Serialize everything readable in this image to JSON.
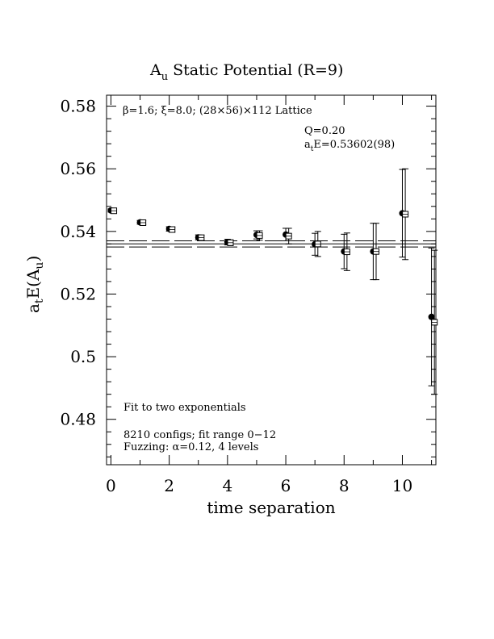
{
  "chart_data": {
    "type": "scatter",
    "title_main": "A",
    "title_sub": "u",
    "title_rest": " Static Potential (R=9)",
    "xlabel": "time separation",
    "ylabel_a": "a",
    "ylabel_t": "t",
    "ylabel_E": "E(A",
    "ylabel_u": "u",
    "ylabel_close": ")",
    "xlim": [
      -0.15,
      11.15
    ],
    "ylim": [
      0.4655,
      0.5835
    ],
    "x_ticks": [
      0,
      2,
      4,
      6,
      8,
      10
    ],
    "x_tick_labels": [
      "0",
      "2",
      "4",
      "6",
      "8",
      "10"
    ],
    "y_ticks": [
      0.48,
      0.5,
      0.52,
      0.54,
      0.56,
      0.58
    ],
    "y_tick_labels": [
      "0.48",
      "0.5",
      "0.52",
      "0.54",
      "0.56",
      "0.58"
    ],
    "annotations": {
      "lattice": "β=1.6; ξ=8.0; (28×56)×112 Lattice",
      "q_value": "Q=0.20",
      "energy_a": "a",
      "energy_t": "t",
      "energy_rest": "E=0.53602(98)",
      "fit_desc": "Fit to two exponentials",
      "configs": "8210 configs; fit range 0−12",
      "fuzzing": "Fuzzing: α=0.12, 4 levels"
    },
    "fit": {
      "value": 0.53602,
      "error": 0.00098
    },
    "series": [
      {
        "marker": "filled-circle",
        "points": [
          {
            "x": 0,
            "y": 0.5467,
            "err": 0.0005
          },
          {
            "x": 1,
            "y": 0.5429,
            "err": 0.0006
          },
          {
            "x": 2,
            "y": 0.5408,
            "err": 0.0007
          },
          {
            "x": 3,
            "y": 0.5381,
            "err": 0.0008
          },
          {
            "x": 4,
            "y": 0.5366,
            "err": 0.0009
          },
          {
            "x": 5,
            "y": 0.5389,
            "err": 0.0013
          },
          {
            "x": 6,
            "y": 0.539,
            "err": 0.002
          },
          {
            "x": 7,
            "y": 0.5359,
            "err": 0.0035
          },
          {
            "x": 8,
            "y": 0.5336,
            "err": 0.0055
          },
          {
            "x": 9,
            "y": 0.5336,
            "err": 0.009
          },
          {
            "x": 10,
            "y": 0.5458,
            "err": 0.014
          },
          {
            "x": 11,
            "y": 0.5127,
            "err": 0.022
          }
        ]
      },
      {
        "marker": "open-square",
        "points": [
          {
            "x": 0.1,
            "y": 0.5466,
            "err": 0.0005
          },
          {
            "x": 1.1,
            "y": 0.5428,
            "err": 0.0006
          },
          {
            "x": 2.1,
            "y": 0.5406,
            "err": 0.0007
          },
          {
            "x": 3.1,
            "y": 0.538,
            "err": 0.0008
          },
          {
            "x": 4.1,
            "y": 0.5364,
            "err": 0.0009
          },
          {
            "x": 5.1,
            "y": 0.5387,
            "err": 0.0015
          },
          {
            "x": 6.1,
            "y": 0.5385,
            "err": 0.0025
          },
          {
            "x": 7.1,
            "y": 0.536,
            "err": 0.004
          },
          {
            "x": 8.1,
            "y": 0.5335,
            "err": 0.006
          },
          {
            "x": 9.1,
            "y": 0.5336,
            "err": 0.009
          },
          {
            "x": 10.1,
            "y": 0.5455,
            "err": 0.0145
          },
          {
            "x": 11.1,
            "y": 0.511,
            "err": 0.023
          }
        ]
      }
    ]
  }
}
